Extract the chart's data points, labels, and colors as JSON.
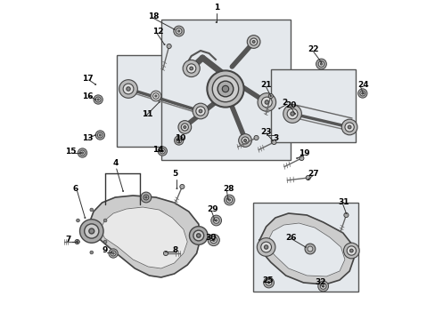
{
  "bg_color": "#ffffff",
  "fig_width": 4.89,
  "fig_height": 3.6,
  "dpi": 100,
  "parts": [
    {
      "num": "1",
      "ix": 242,
      "iy": 8,
      "ha": "center"
    },
    {
      "num": "2",
      "ix": 342,
      "iy": 115,
      "ha": "left"
    },
    {
      "num": "3",
      "ix": 328,
      "iy": 155,
      "ha": "left"
    },
    {
      "num": "4",
      "ix": 88,
      "iy": 183,
      "ha": "center"
    },
    {
      "num": "5",
      "ix": 175,
      "iy": 196,
      "ha": "left"
    },
    {
      "num": "6",
      "ix": 23,
      "iy": 212,
      "ha": "left"
    },
    {
      "num": "7",
      "ix": 12,
      "iy": 270,
      "ha": "left"
    },
    {
      "num": "8",
      "ix": 175,
      "iy": 282,
      "ha": "left"
    },
    {
      "num": "9",
      "ix": 68,
      "iy": 282,
      "ha": "left"
    },
    {
      "num": "10",
      "ix": 178,
      "iy": 155,
      "ha": "left"
    },
    {
      "num": "11",
      "ix": 128,
      "iy": 128,
      "ha": "left"
    },
    {
      "num": "12",
      "ix": 145,
      "iy": 35,
      "ha": "left"
    },
    {
      "num": "13",
      "ix": 38,
      "iy": 155,
      "ha": "left"
    },
    {
      "num": "14",
      "ix": 145,
      "iy": 168,
      "ha": "left"
    },
    {
      "num": "15",
      "ix": 12,
      "iy": 170,
      "ha": "left"
    },
    {
      "num": "16",
      "ix": 38,
      "iy": 108,
      "ha": "left"
    },
    {
      "num": "17",
      "ix": 38,
      "iy": 88,
      "ha": "left"
    },
    {
      "num": "18",
      "ix": 138,
      "iy": 18,
      "ha": "left"
    },
    {
      "num": "19",
      "ix": 368,
      "iy": 172,
      "ha": "left"
    },
    {
      "num": "20",
      "ix": 348,
      "iy": 118,
      "ha": "left"
    },
    {
      "num": "21",
      "ix": 310,
      "iy": 95,
      "ha": "left"
    },
    {
      "num": "22",
      "ix": 382,
      "iy": 55,
      "ha": "left"
    },
    {
      "num": "23",
      "ix": 310,
      "iy": 148,
      "ha": "left"
    },
    {
      "num": "24",
      "ix": 458,
      "iy": 95,
      "ha": "left"
    },
    {
      "num": "25",
      "ix": 312,
      "iy": 315,
      "ha": "left"
    },
    {
      "num": "26",
      "ix": 348,
      "iy": 268,
      "ha": "left"
    },
    {
      "num": "27",
      "ix": 382,
      "iy": 195,
      "ha": "left"
    },
    {
      "num": "28",
      "ix": 252,
      "iy": 212,
      "ha": "left"
    },
    {
      "num": "29",
      "ix": 228,
      "iy": 235,
      "ha": "left"
    },
    {
      "num": "30",
      "ix": 225,
      "iy": 268,
      "ha": "left"
    },
    {
      "num": "31",
      "ix": 428,
      "iy": 228,
      "ha": "left"
    },
    {
      "num": "32",
      "ix": 392,
      "iy": 318,
      "ha": "left"
    }
  ]
}
